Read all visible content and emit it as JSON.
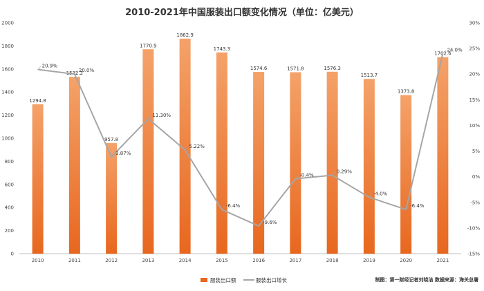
{
  "chart_data": {
    "type": "bar",
    "title": "2010-2021年中国服装出口额变化情况（单位：亿美元）",
    "categories": [
      "2010",
      "2011",
      "2012",
      "2013",
      "2014",
      "2015",
      "2016",
      "2017",
      "2018",
      "2019",
      "2020",
      "2021"
    ],
    "series": [
      {
        "name": "服装出口额",
        "type": "bar",
        "axis": "left",
        "values": [
          1294.8,
          1532.2,
          957.8,
          1770.9,
          1862.9,
          1743.3,
          1574.6,
          1571.8,
          1576.3,
          1513.7,
          1373.8,
          1702.6
        ],
        "labels": [
          "1294.8",
          "1532.2",
          "957.8",
          "1770.9",
          "1862.9",
          "1743.3",
          "1574.6",
          "1571.8",
          "1576.3",
          "1513.7",
          "1373.8",
          "1702.6"
        ]
      },
      {
        "name": "服装出口增长",
        "type": "line",
        "axis": "right",
        "values": [
          20.9,
          20.0,
          3.87,
          11.3,
          5.22,
          -6.4,
          -9.6,
          -0.4,
          0.29,
          -4.0,
          -6.4,
          24.0
        ],
        "labels": [
          "20.9%",
          "20.0%",
          "3.87%",
          "11.30%",
          "5.22%",
          "-6.4%",
          "-9.6%",
          "-0.4%",
          "0.29%",
          "-4.0%",
          "-6.4%",
          "24.0%"
        ]
      }
    ],
    "y_left": {
      "min": 0,
      "max": 2000,
      "ticks": [
        "0",
        "200",
        "400",
        "600",
        "800",
        "1000",
        "1200",
        "1400",
        "1600",
        "1800",
        "2000"
      ]
    },
    "y_right": {
      "min": -15,
      "max": 30,
      "ticks": [
        "-15%",
        "-10%",
        "-5%",
        "0%",
        "5%",
        "10%",
        "15%",
        "20%",
        "25%",
        "30%"
      ]
    },
    "legend_position": "bottom-center",
    "credit": "制图：第一财经记者刘晓洁  数据来源：海关总署"
  },
  "colors": {
    "bar_top": "#f4a26a",
    "bar_bottom": "#e8671e",
    "line": "#a6a6a6",
    "axis": "#bfbfbf"
  }
}
